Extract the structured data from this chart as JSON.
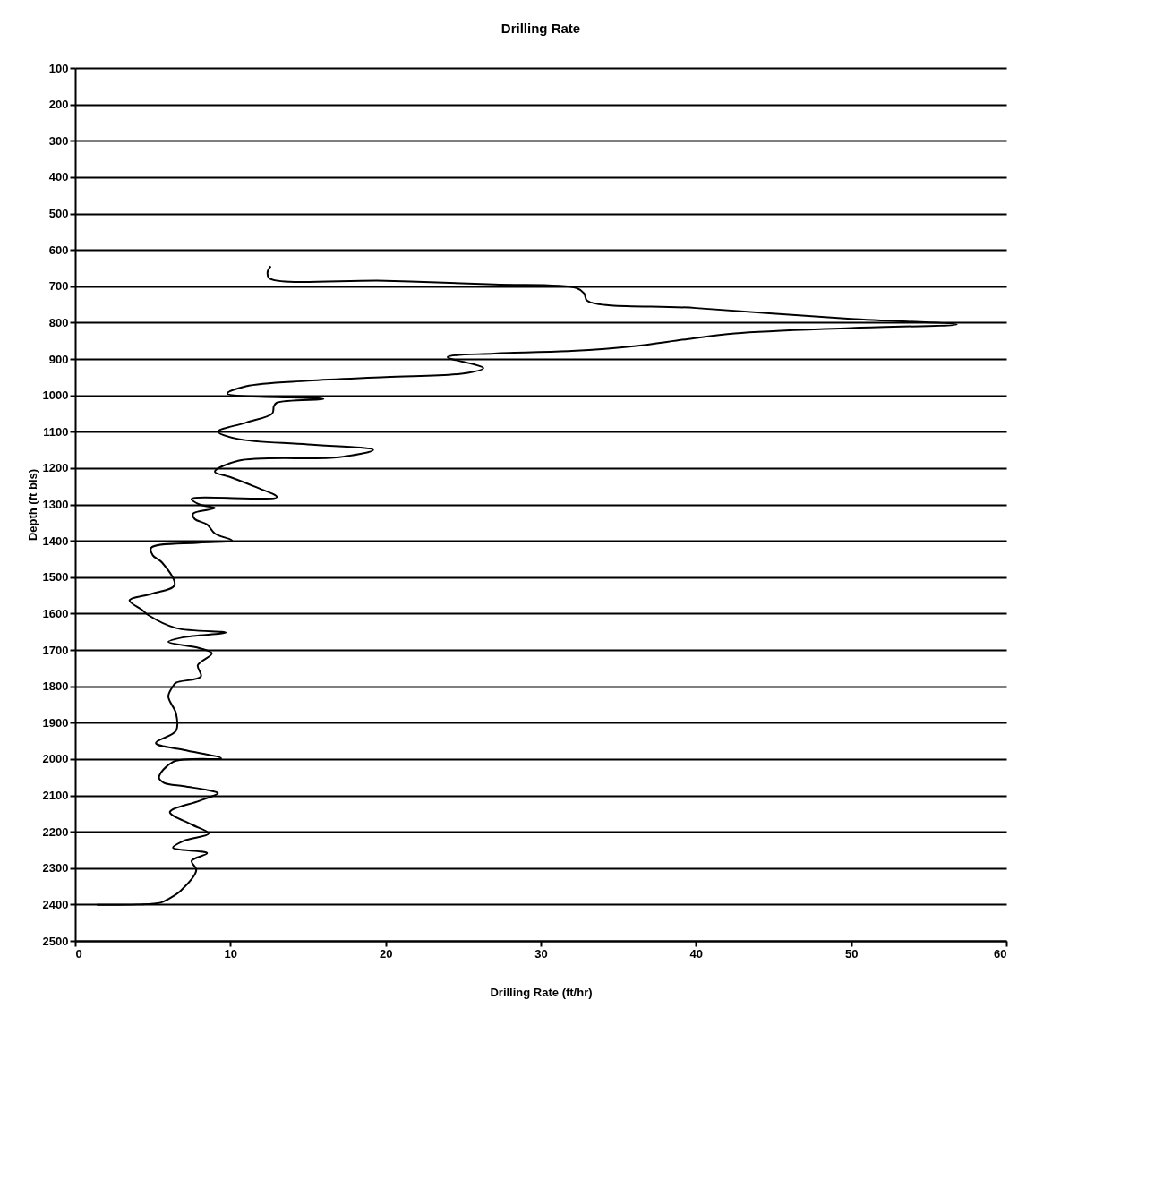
{
  "chart_data": {
    "type": "line",
    "title": "Drilling Rate",
    "xlabel": "Drilling Rate (ft/hr)",
    "ylabel": "Depth (ft bls)",
    "xlim": [
      0,
      60
    ],
    "xticks": [
      0,
      10,
      20,
      30,
      40,
      50,
      60
    ],
    "ylim": [
      2500,
      100
    ],
    "yticks": [
      100,
      200,
      300,
      400,
      500,
      600,
      700,
      800,
      900,
      1000,
      1100,
      1200,
      1300,
      1400,
      1500,
      1600,
      1700,
      1800,
      1900,
      2000,
      2100,
      2200,
      2300,
      2400,
      2500
    ],
    "grid": "y",
    "marker": "none",
    "line_style": "solid",
    "series": [
      {
        "color": "#000000",
        "x": [
          12.6,
          12.4,
          12.5,
          20,
          27,
          32.3,
          32.8,
          33,
          40,
          50,
          56.8,
          50,
          42.5,
          39.5,
          36,
          32,
          27,
          24,
          26.3,
          25,
          20,
          15,
          11,
          9.8,
          16,
          13,
          12.8,
          12.7,
          11,
          9.2,
          10.5,
          15,
          19.2,
          17,
          10.5,
          9,
          10,
          11.5,
          13,
          7.5,
          8,
          9,
          7.6,
          7.7,
          8.5,
          9,
          10.1,
          8,
          4.9,
          5,
          5.6,
          6.4,
          5,
          3.5,
          4.3,
          4.7,
          6.5,
          9.7,
          7,
          6,
          8,
          8.8,
          7.9,
          8.1,
          6.5,
          6.3,
          6,
          6.5,
          6.5,
          5.2,
          7,
          9.4,
          6.3,
          5.4,
          5.7,
          7,
          8.5,
          9.2,
          8,
          6.1,
          7.5,
          8.6,
          7,
          6.3,
          8.5,
          7.5,
          7.8,
          6.8,
          6,
          5.5,
          4,
          1.4
        ],
        "values": [
          645,
          660,
          678,
          685,
          695,
          705,
          720,
          740,
          760,
          790,
          805,
          815,
          830,
          845,
          865,
          878,
          885,
          895,
          925,
          940,
          950,
          960,
          975,
          995,
          1010,
          1020,
          1030,
          1050,
          1075,
          1100,
          1120,
          1135,
          1150,
          1170,
          1180,
          1210,
          1225,
          1250,
          1280,
          1285,
          1300,
          1310,
          1325,
          1340,
          1355,
          1380,
          1399,
          1405,
          1419,
          1440,
          1460,
          1522,
          1545,
          1564,
          1590,
          1604,
          1640,
          1652,
          1665,
          1678,
          1695,
          1710,
          1742,
          1773,
          1790,
          1800,
          1828,
          1875,
          1922,
          1956,
          1975,
          1998,
          2008,
          2051,
          2065,
          2075,
          2085,
          2094,
          2115,
          2146,
          2180,
          2205,
          2225,
          2244,
          2259,
          2280,
          2306,
          2362,
          2385,
          2395,
          2400,
          2401
        ]
      }
    ]
  }
}
